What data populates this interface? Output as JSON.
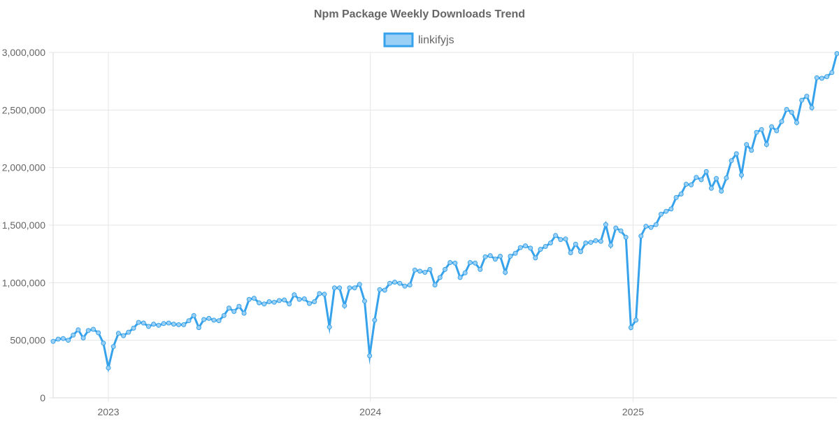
{
  "chart_data": {
    "type": "line",
    "title": "Npm Package Weekly Downloads Trend",
    "legend": {
      "position": "top-center"
    },
    "grid": true,
    "x_axis": {
      "type": "date",
      "range": [
        "2022-10-16",
        "2025-10-12"
      ],
      "ticks": [
        "2023",
        "2024",
        "2025"
      ],
      "tick_dates": [
        "2023-01-01",
        "2024-01-01",
        "2025-01-01"
      ]
    },
    "y_axis": {
      "range": [
        0,
        3000000
      ],
      "ticks": [
        0,
        500000,
        1000000,
        1500000,
        2000000,
        2500000,
        3000000
      ],
      "tick_labels": [
        "0",
        "500,000",
        "1,000,000",
        "1,500,000",
        "2,000,000",
        "2,500,000",
        "3,000,000"
      ]
    },
    "series": [
      {
        "name": "linkifyjs",
        "line_color": "#36a2eb",
        "fill_color": "#9ad0f5",
        "points": [
          [
            "2022-10-16",
            490000
          ],
          [
            "2022-10-23",
            510000
          ],
          [
            "2022-10-30",
            515000
          ],
          [
            "2022-11-06",
            500000
          ],
          [
            "2022-11-13",
            545000
          ],
          [
            "2022-11-20",
            590000
          ],
          [
            "2022-11-27",
            520000
          ],
          [
            "2022-12-04",
            585000
          ],
          [
            "2022-12-11",
            595000
          ],
          [
            "2022-12-18",
            565000
          ],
          [
            "2022-12-25",
            475000
          ],
          [
            "2023-01-01",
            260000
          ],
          [
            "2023-01-08",
            445000
          ],
          [
            "2023-01-15",
            560000
          ],
          [
            "2023-01-22",
            540000
          ],
          [
            "2023-01-29",
            570000
          ],
          [
            "2023-02-05",
            605000
          ],
          [
            "2023-02-12",
            655000
          ],
          [
            "2023-02-19",
            650000
          ],
          [
            "2023-02-26",
            620000
          ],
          [
            "2023-03-05",
            640000
          ],
          [
            "2023-03-12",
            630000
          ],
          [
            "2023-03-19",
            645000
          ],
          [
            "2023-03-26",
            650000
          ],
          [
            "2023-04-02",
            640000
          ],
          [
            "2023-04-09",
            635000
          ],
          [
            "2023-04-16",
            635000
          ],
          [
            "2023-04-23",
            670000
          ],
          [
            "2023-04-30",
            715000
          ],
          [
            "2023-05-07",
            610000
          ],
          [
            "2023-05-14",
            680000
          ],
          [
            "2023-05-21",
            690000
          ],
          [
            "2023-05-28",
            675000
          ],
          [
            "2023-06-04",
            670000
          ],
          [
            "2023-06-11",
            715000
          ],
          [
            "2023-06-18",
            780000
          ],
          [
            "2023-06-25",
            750000
          ],
          [
            "2023-07-02",
            795000
          ],
          [
            "2023-07-09",
            735000
          ],
          [
            "2023-07-16",
            855000
          ],
          [
            "2023-07-23",
            865000
          ],
          [
            "2023-07-30",
            825000
          ],
          [
            "2023-08-06",
            815000
          ],
          [
            "2023-08-13",
            835000
          ],
          [
            "2023-08-20",
            830000
          ],
          [
            "2023-08-27",
            845000
          ],
          [
            "2023-09-03",
            850000
          ],
          [
            "2023-09-10",
            815000
          ],
          [
            "2023-09-17",
            895000
          ],
          [
            "2023-09-24",
            855000
          ],
          [
            "2023-10-01",
            860000
          ],
          [
            "2023-10-08",
            820000
          ],
          [
            "2023-10-15",
            835000
          ],
          [
            "2023-10-22",
            905000
          ],
          [
            "2023-10-29",
            900000
          ],
          [
            "2023-11-05",
            615000
          ],
          [
            "2023-11-12",
            955000
          ],
          [
            "2023-11-19",
            955000
          ],
          [
            "2023-11-26",
            800000
          ],
          [
            "2023-12-03",
            955000
          ],
          [
            "2023-12-10",
            955000
          ],
          [
            "2023-12-17",
            985000
          ],
          [
            "2023-12-24",
            840000
          ],
          [
            "2023-12-31",
            365000
          ],
          [
            "2024-01-07",
            675000
          ],
          [
            "2024-01-14",
            940000
          ],
          [
            "2024-01-21",
            935000
          ],
          [
            "2024-01-28",
            995000
          ],
          [
            "2024-02-04",
            1005000
          ],
          [
            "2024-02-11",
            995000
          ],
          [
            "2024-02-18",
            970000
          ],
          [
            "2024-02-25",
            980000
          ],
          [
            "2024-03-03",
            1110000
          ],
          [
            "2024-03-10",
            1100000
          ],
          [
            "2024-03-17",
            1090000
          ],
          [
            "2024-03-24",
            1115000
          ],
          [
            "2024-03-31",
            980000
          ],
          [
            "2024-04-07",
            1045000
          ],
          [
            "2024-04-14",
            1115000
          ],
          [
            "2024-04-21",
            1175000
          ],
          [
            "2024-04-28",
            1170000
          ],
          [
            "2024-05-05",
            1045000
          ],
          [
            "2024-05-12",
            1085000
          ],
          [
            "2024-05-19",
            1175000
          ],
          [
            "2024-05-26",
            1170000
          ],
          [
            "2024-06-02",
            1115000
          ],
          [
            "2024-06-09",
            1225000
          ],
          [
            "2024-06-16",
            1235000
          ],
          [
            "2024-06-23",
            1205000
          ],
          [
            "2024-06-30",
            1230000
          ],
          [
            "2024-07-07",
            1090000
          ],
          [
            "2024-07-14",
            1230000
          ],
          [
            "2024-07-21",
            1255000
          ],
          [
            "2024-07-28",
            1305000
          ],
          [
            "2024-08-04",
            1320000
          ],
          [
            "2024-08-11",
            1300000
          ],
          [
            "2024-08-18",
            1215000
          ],
          [
            "2024-08-25",
            1290000
          ],
          [
            "2024-09-01",
            1315000
          ],
          [
            "2024-09-08",
            1345000
          ],
          [
            "2024-09-15",
            1410000
          ],
          [
            "2024-09-22",
            1375000
          ],
          [
            "2024-09-29",
            1380000
          ],
          [
            "2024-10-06",
            1260000
          ],
          [
            "2024-10-13",
            1335000
          ],
          [
            "2024-10-20",
            1270000
          ],
          [
            "2024-10-27",
            1345000
          ],
          [
            "2024-11-03",
            1350000
          ],
          [
            "2024-11-10",
            1365000
          ],
          [
            "2024-11-17",
            1360000
          ],
          [
            "2024-11-24",
            1505000
          ],
          [
            "2024-12-01",
            1325000
          ],
          [
            "2024-12-08",
            1475000
          ],
          [
            "2024-12-15",
            1450000
          ],
          [
            "2024-12-22",
            1395000
          ],
          [
            "2024-12-29",
            610000
          ],
          [
            "2025-01-05",
            675000
          ],
          [
            "2025-01-12",
            1405000
          ],
          [
            "2025-01-19",
            1490000
          ],
          [
            "2025-01-26",
            1480000
          ],
          [
            "2025-02-02",
            1505000
          ],
          [
            "2025-02-09",
            1595000
          ],
          [
            "2025-02-16",
            1620000
          ],
          [
            "2025-02-23",
            1640000
          ],
          [
            "2025-03-02",
            1740000
          ],
          [
            "2025-03-09",
            1770000
          ],
          [
            "2025-03-16",
            1855000
          ],
          [
            "2025-03-23",
            1850000
          ],
          [
            "2025-03-30",
            1915000
          ],
          [
            "2025-04-06",
            1895000
          ],
          [
            "2025-04-13",
            1965000
          ],
          [
            "2025-04-20",
            1820000
          ],
          [
            "2025-04-27",
            1905000
          ],
          [
            "2025-05-04",
            1795000
          ],
          [
            "2025-05-11",
            1910000
          ],
          [
            "2025-05-18",
            2060000
          ],
          [
            "2025-05-25",
            2120000
          ],
          [
            "2025-06-01",
            1935000
          ],
          [
            "2025-06-08",
            2200000
          ],
          [
            "2025-06-15",
            2150000
          ],
          [
            "2025-06-22",
            2305000
          ],
          [
            "2025-06-29",
            2330000
          ],
          [
            "2025-07-06",
            2200000
          ],
          [
            "2025-07-13",
            2355000
          ],
          [
            "2025-07-20",
            2320000
          ],
          [
            "2025-07-27",
            2400000
          ],
          [
            "2025-08-03",
            2505000
          ],
          [
            "2025-08-10",
            2480000
          ],
          [
            "2025-08-17",
            2390000
          ],
          [
            "2025-08-24",
            2585000
          ],
          [
            "2025-08-31",
            2620000
          ],
          [
            "2025-09-07",
            2520000
          ],
          [
            "2025-09-14",
            2780000
          ],
          [
            "2025-09-21",
            2775000
          ],
          [
            "2025-09-28",
            2790000
          ],
          [
            "2025-10-05",
            2825000
          ],
          [
            "2025-10-12",
            2990000
          ]
        ]
      }
    ]
  }
}
